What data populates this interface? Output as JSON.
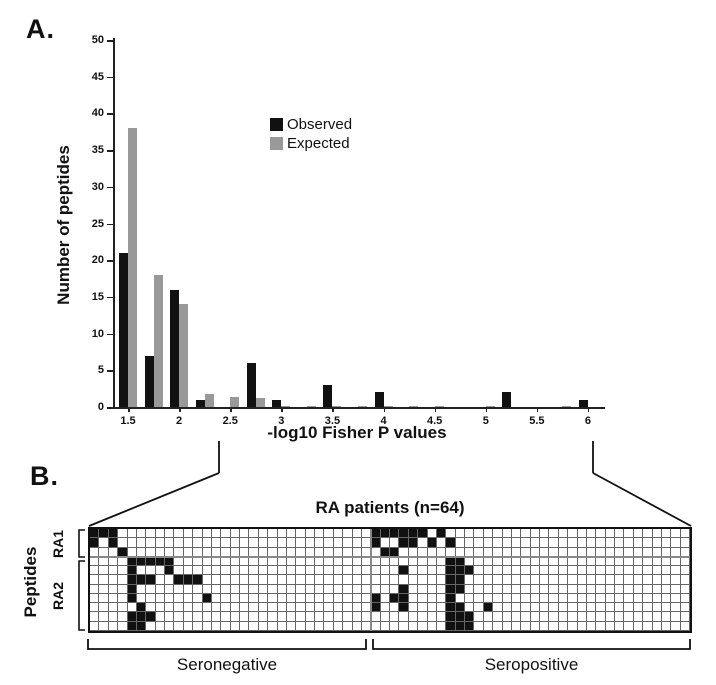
{
  "panel_a": {
    "label": "A.",
    "y_axis": {
      "title": "Number of peptides",
      "min": 0,
      "max": 50,
      "tick_step": 5
    },
    "x_axis": {
      "title": "-log10 Fisher P values",
      "tick_values": [
        1.5,
        2,
        2.5,
        3,
        3.5,
        4,
        4.5,
        5,
        5.5,
        6
      ],
      "tick_labels": [
        "1.5",
        "2",
        "2.5",
        "3",
        "3.5",
        "4",
        "4.5",
        "5",
        "5.5",
        "6"
      ]
    },
    "legend": [
      {
        "label": "Observed",
        "color": "#111111"
      },
      {
        "label": "Expected",
        "color": "#999999"
      }
    ]
  },
  "chart_data": {
    "type": "bar",
    "title": "",
    "xlabel": "-log10 Fisher P values",
    "ylabel": "Number of peptides",
    "ylim": [
      0,
      50
    ],
    "grid": false,
    "legend_position": "upper-center",
    "categories": [
      1.5,
      1.75,
      2,
      2.25,
      2.5,
      2.75,
      3,
      3.25,
      3.5,
      3.75,
      4,
      4.25,
      4.5,
      4.75,
      5,
      5.25,
      5.5,
      5.75,
      6
    ],
    "series": [
      {
        "name": "Observed",
        "color": "#111111",
        "values": [
          21,
          7,
          16,
          1,
          0,
          6,
          1,
          0,
          3,
          0,
          2,
          0,
          0,
          0,
          0,
          2,
          0,
          0,
          1
        ]
      },
      {
        "name": "Expected",
        "color": "#999999",
        "values": [
          38,
          18,
          14,
          1.8,
          1.3,
          1.2,
          0.2,
          0.2,
          0.1,
          0.1,
          0.1,
          0.2,
          0.2,
          0,
          0.1,
          0,
          0,
          0.1,
          0
        ]
      }
    ]
  },
  "panel_b": {
    "label": "B.",
    "title": "RA patients (n=64)",
    "peptides_label": "Peptides",
    "row_groups": [
      {
        "label": "RA1",
        "rows": [
          1,
          3
        ]
      },
      {
        "label": "RA2",
        "rows": [
          4,
          11
        ]
      }
    ],
    "col_groups": [
      {
        "label": "Seronegative",
        "cols": [
          1,
          30
        ]
      },
      {
        "label": "Seropositive",
        "cols": [
          31,
          64
        ]
      }
    ],
    "grid": {
      "rows": 11,
      "cols": 64,
      "black_cells": {
        "1": [
          1,
          2,
          3,
          31,
          32,
          33,
          34,
          35,
          36,
          38
        ],
        "2": [
          1,
          3,
          31,
          34,
          35,
          37,
          39
        ],
        "3": [
          4,
          32,
          33
        ],
        "4": [
          5,
          6,
          7,
          8,
          9,
          39,
          40
        ],
        "5": [
          5,
          9,
          34,
          39,
          40,
          41
        ],
        "6": [
          5,
          6,
          7,
          10,
          11,
          12,
          39,
          40
        ],
        "7": [
          5,
          34,
          39,
          40
        ],
        "8": [
          5,
          13,
          31,
          33,
          34,
          39
        ],
        "9": [
          6,
          31,
          34,
          39,
          40,
          43
        ],
        "10": [
          5,
          6,
          7,
          39,
          40,
          41
        ],
        "11": [
          5,
          6,
          39,
          40,
          41
        ]
      }
    }
  }
}
